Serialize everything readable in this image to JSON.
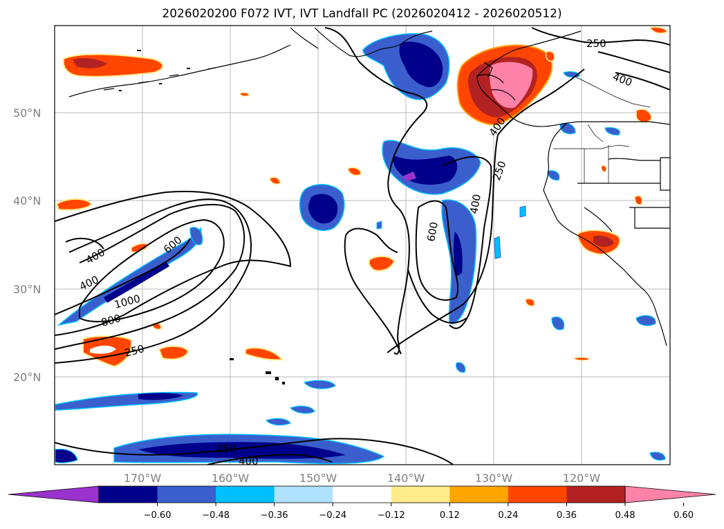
{
  "title": "2026020200 F072 IVT, IVT Landfall PC (2026020412 - 2026020512)",
  "lat_labels": [
    "50°N",
    "40°N",
    "30°N",
    "20°N"
  ],
  "lon_labels": [
    "170°W",
    "160°W",
    "150°W",
    "140°W",
    "130°W",
    "120°W"
  ],
  "colorbar": {
    "colors": [
      "#9a32cd",
      "#00008b",
      "#3a5fcd",
      "#00bfff",
      "#b0e2ff",
      "#ffffff",
      "#ffec8b",
      "#ffa500",
      "#ff4500",
      "#b22222",
      "#ff83a8"
    ],
    "ticks": [
      "−0.60",
      "−0.48",
      "−0.36",
      "−0.24",
      "−0.12",
      "0.12",
      "0.24",
      "0.36",
      "0.48",
      "0.60"
    ]
  },
  "contour_labels": [
    {
      "text": "250",
      "name": "contour-label-250-ne"
    },
    {
      "text": "400",
      "name": "contour-label-400-ne"
    },
    {
      "text": "400",
      "name": "contour-label-400-coast"
    },
    {
      "text": "250",
      "name": "contour-label-250-coast"
    },
    {
      "text": "400",
      "name": "contour-label-400-mid"
    },
    {
      "text": "600",
      "name": "contour-label-600-mid"
    },
    {
      "text": "400",
      "name": "contour-label-400-west-a"
    },
    {
      "text": "600",
      "name": "contour-label-600-west"
    },
    {
      "text": "400",
      "name": "contour-label-400-west-b"
    },
    {
      "text": "1000",
      "name": "contour-label-1000"
    },
    {
      "text": "800",
      "name": "contour-label-800"
    },
    {
      "text": "250",
      "name": "contour-label-250-sw"
    },
    {
      "text": "250",
      "name": "contour-label-250-south"
    },
    {
      "text": "400",
      "name": "contour-label-400-south"
    }
  ]
}
